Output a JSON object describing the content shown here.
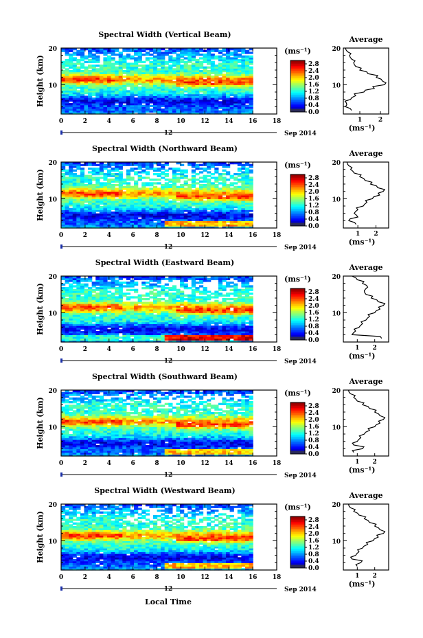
{
  "figure": {
    "xlabel": "Local Time",
    "date_label": "Sep 2014",
    "day_label": "12"
  },
  "chart_data": [
    {
      "type": "heatmap",
      "title": "Spectral Width (Vertical Beam)",
      "ylabel": "Height (km)",
      "xticks": [
        0,
        2,
        4,
        6,
        8,
        10,
        12,
        14,
        16,
        18
      ],
      "yticks": [
        10,
        20
      ],
      "xlim": [
        0,
        18
      ],
      "ylim": [
        2,
        20
      ],
      "data_end_x": 16,
      "colorbar": {
        "unit": "(ms⁻¹)",
        "ticks": [
          "2.8",
          "2.4",
          "2.0",
          "1.6",
          "1.2",
          "0.8",
          "0.4",
          "0.0"
        ],
        "range": [
          0,
          3.0
        ]
      },
      "average": {
        "title": "Average",
        "xticks": [
          "1",
          "2"
        ],
        "xlabel": "(ms⁻¹)",
        "xlim": [
          0.2,
          2.4
        ],
        "heights": [
          3,
          4,
          5,
          6,
          7,
          8,
          9,
          10,
          11,
          12,
          13,
          14,
          15,
          16,
          17,
          18,
          19,
          20
        ],
        "values": [
          0.6,
          0.3,
          0.35,
          0.55,
          0.8,
          1.2,
          1.7,
          2.2,
          2.1,
          1.8,
          1.4,
          1.0,
          0.8,
          0.7,
          0.6,
          0.5,
          0.4,
          0.3
        ]
      }
    },
    {
      "type": "heatmap",
      "title": "Spectral Width (Northward Beam)",
      "ylabel": "Height (km)",
      "xticks": [
        0,
        2,
        4,
        6,
        8,
        10,
        12,
        14,
        16,
        18
      ],
      "yticks": [
        10,
        20
      ],
      "xlim": [
        0,
        18
      ],
      "ylim": [
        2,
        20
      ],
      "data_end_x": 16,
      "colorbar": {
        "unit": "(ms⁻¹)",
        "ticks": [
          "2.8",
          "2.4",
          "2.0",
          "1.6",
          "1.2",
          "0.8",
          "0.4",
          "0.0"
        ],
        "range": [
          0,
          3.0
        ]
      },
      "average": {
        "title": "Average",
        "xticks": [
          "1",
          "2"
        ],
        "xlabel": "(ms⁻¹)",
        "xlim": [
          0.2,
          2.7
        ],
        "heights": [
          3,
          4,
          5,
          6,
          7,
          8,
          9,
          10,
          11,
          12,
          13,
          14,
          15,
          16,
          17,
          18,
          19,
          20
        ],
        "values": [
          0.9,
          0.5,
          1.0,
          0.8,
          1.0,
          1.3,
          1.5,
          1.8,
          2.2,
          2.4,
          2.1,
          1.7,
          1.4,
          1.1,
          0.8,
          0.6,
          0.5,
          0.4
        ]
      }
    },
    {
      "type": "heatmap",
      "title": "Spectral Width (Eastward Beam)",
      "ylabel": "Height (km)",
      "xticks": [
        0,
        2,
        4,
        6,
        8,
        10,
        12,
        14,
        16,
        18
      ],
      "yticks": [
        10,
        20
      ],
      "xlim": [
        0,
        18
      ],
      "ylim": [
        2,
        20
      ],
      "data_end_x": 16,
      "colorbar": {
        "unit": "(ms⁻¹)",
        "ticks": [
          "2.8",
          "2.4",
          "2.0",
          "1.6",
          "1.2",
          "0.8",
          "0.4",
          "0.0"
        ],
        "range": [
          0,
          3.0
        ]
      },
      "average": {
        "title": "Average",
        "xticks": [
          "1",
          "2"
        ],
        "xlabel": "(ms⁻¹)",
        "xlim": [
          0.2,
          2.8
        ],
        "heights": [
          3,
          4,
          5,
          6,
          7,
          8,
          9,
          10,
          11,
          12,
          13,
          14,
          15,
          16,
          17,
          18,
          19,
          20
        ],
        "values": [
          2.4,
          0.7,
          0.9,
          1.1,
          1.3,
          1.5,
          1.7,
          2.0,
          2.3,
          2.5,
          2.2,
          1.8,
          1.5,
          1.4,
          1.6,
          1.3,
          1.0,
          0.7
        ]
      }
    },
    {
      "type": "heatmap",
      "title": "Spectral Width (Southward Beam)",
      "ylabel": "Height (km)",
      "xticks": [
        0,
        2,
        4,
        6,
        8,
        10,
        12,
        14,
        16,
        18
      ],
      "yticks": [
        10,
        20
      ],
      "xlim": [
        0,
        18
      ],
      "ylim": [
        2,
        20
      ],
      "data_end_x": 16,
      "colorbar": {
        "unit": "(ms⁻¹)",
        "ticks": [
          "2.8",
          "2.4",
          "2.0",
          "1.6",
          "1.2",
          "0.8",
          "0.4",
          "0.0"
        ],
        "range": [
          0,
          3.0
        ]
      },
      "average": {
        "title": "Average",
        "xticks": [
          "1",
          "2"
        ],
        "xlabel": "(ms⁻¹)",
        "xlim": [
          0.2,
          2.8
        ],
        "heights": [
          3,
          4,
          5,
          6,
          7,
          8,
          9,
          10,
          11,
          12,
          13,
          14,
          15,
          16,
          17,
          18,
          19,
          20
        ],
        "values": [
          0.8,
          1.3,
          0.8,
          1.0,
          1.2,
          1.4,
          1.7,
          2.0,
          2.3,
          2.5,
          2.3,
          2.0,
          1.7,
          1.3,
          1.0,
          0.8,
          0.6,
          0.5
        ]
      }
    },
    {
      "type": "heatmap",
      "title": "Spectral Width (Westward Beam)",
      "ylabel": "Height (km)",
      "xticks": [
        0,
        2,
        4,
        6,
        8,
        10,
        12,
        14,
        16,
        18
      ],
      "yticks": [
        10,
        20
      ],
      "xlim": [
        0,
        18
      ],
      "ylim": [
        2,
        20
      ],
      "data_end_x": 16,
      "colorbar": {
        "unit": "(ms⁻¹)",
        "ticks": [
          "2.8",
          "2.4",
          "2.0",
          "1.6",
          "1.2",
          "0.8",
          "0.4",
          "0.0"
        ],
        "range": [
          0,
          3.0
        ]
      },
      "average": {
        "title": "Average",
        "xticks": [
          "1",
          "2"
        ],
        "xlabel": "(ms⁻¹)",
        "xlim": [
          0.2,
          2.8
        ],
        "heights": [
          3,
          4,
          5,
          6,
          7,
          8,
          9,
          10,
          11,
          12,
          13,
          14,
          15,
          16,
          17,
          18,
          19,
          20
        ],
        "values": [
          1.0,
          1.2,
          0.7,
          0.9,
          1.1,
          1.3,
          1.6,
          1.9,
          2.2,
          2.5,
          2.3,
          2.0,
          1.7,
          1.4,
          1.1,
          0.8,
          0.6,
          0.5
        ]
      }
    }
  ]
}
